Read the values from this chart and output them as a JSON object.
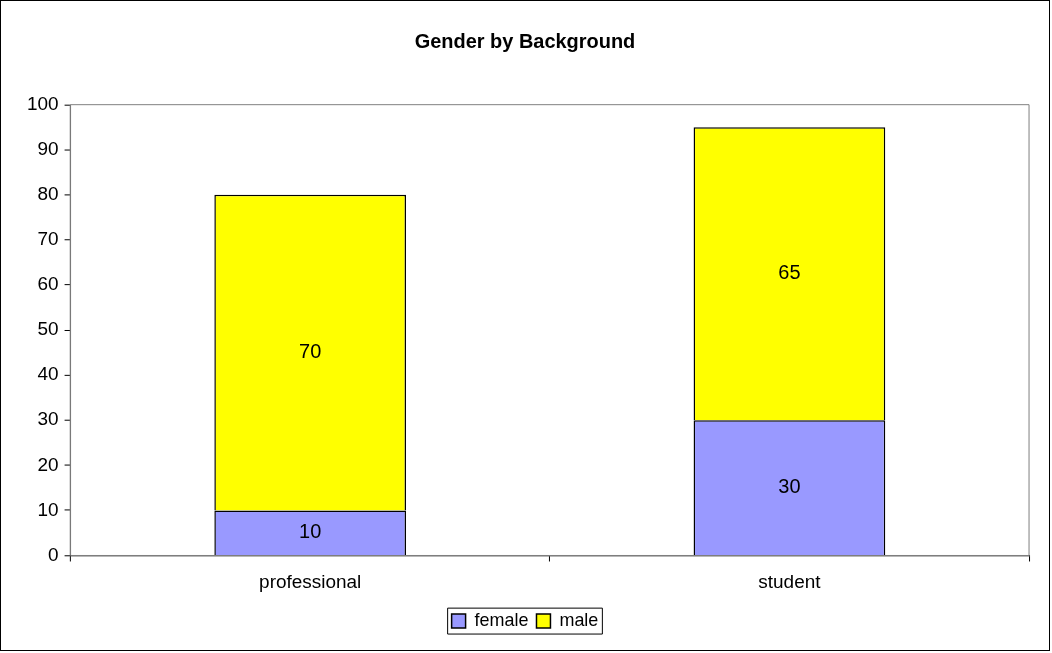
{
  "chart_data": {
    "type": "bar",
    "title": "Gender by Background",
    "stacked": true,
    "categories": [
      "professional",
      "student"
    ],
    "series": [
      {
        "name": "female",
        "color": "#9999ff",
        "values": [
          10,
          30
        ]
      },
      {
        "name": "male",
        "color": "#ffff00",
        "values": [
          70,
          65
        ]
      }
    ],
    "ylim": [
      0,
      100
    ],
    "yticks": [
      0,
      10,
      20,
      30,
      40,
      50,
      60,
      70,
      80,
      90,
      100
    ],
    "grid": false,
    "legend": "bottom",
    "data_labels": true
  }
}
